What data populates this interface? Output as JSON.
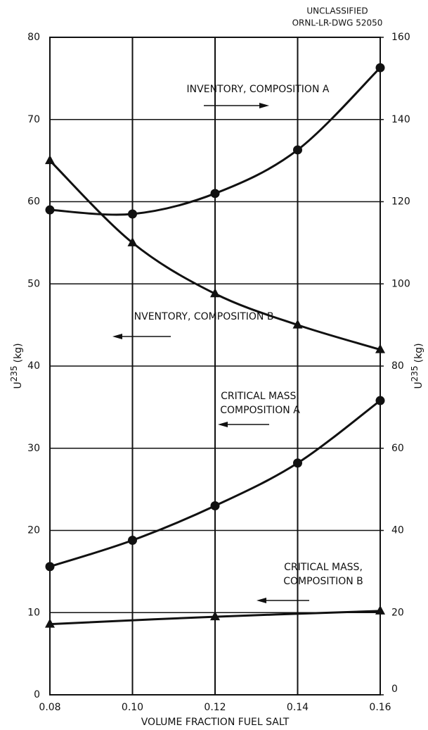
{
  "chart_data": {
    "type": "line",
    "header": [
      "UNCLASSIFIED",
      "ORNL-LR-DWG 52050"
    ],
    "xlabel": "VOLUME FRACTION FUEL SALT",
    "ylabel": [
      "U",
      "235",
      "(kg)"
    ],
    "y2label": [
      "U",
      "235",
      "(kg)"
    ],
    "xlim": [
      0.08,
      0.16
    ],
    "xticks": [
      0.08,
      {
        "value": 0.1,
        "label": "0.10"
      },
      0.12,
      0.14,
      0.16
    ],
    "ylim": [
      0,
      80
    ],
    "yticks": [
      0,
      10,
      20,
      30,
      40,
      50,
      60,
      70,
      80
    ],
    "y2lim": [
      0,
      160
    ],
    "y2ticks": [
      0,
      20,
      40,
      60,
      80,
      100,
      120,
      140,
      160
    ],
    "grid": true,
    "color": "#111111",
    "series": [
      {
        "label": [
          "INVENTORY, COMPOSITION A"
        ],
        "axis": "y2",
        "marker": "circle",
        "arrow": "right",
        "x": [
          0.08,
          0.1,
          0.12,
          0.14,
          0.16
        ],
        "values": [
          118,
          117,
          122,
          132.6,
          152.6
        ]
      },
      {
        "label": [
          "INVENTORY, COMPOSITION B"
        ],
        "marker": "triangle",
        "arrow": "left",
        "x": [
          0.08,
          0.1,
          0.12,
          0.14,
          0.16
        ],
        "values": [
          65,
          55,
          48.8,
          45,
          42
        ]
      },
      {
        "label": [
          "CRITICAL MASS,",
          "COMPOSITION A"
        ],
        "marker": "circle",
        "arrow": "left",
        "x": [
          0.08,
          0.1,
          0.12,
          0.14,
          0.16
        ],
        "values": [
          15.6,
          18.8,
          23,
          28.2,
          35.8
        ]
      },
      {
        "label": [
          "CRITICAL MASS,",
          "COMPOSITION B"
        ],
        "marker": "triangle",
        "arrow": "left",
        "x": [
          0.08,
          0.12,
          0.16
        ],
        "values": [
          8.6,
          9.5,
          10.2
        ]
      }
    ]
  }
}
